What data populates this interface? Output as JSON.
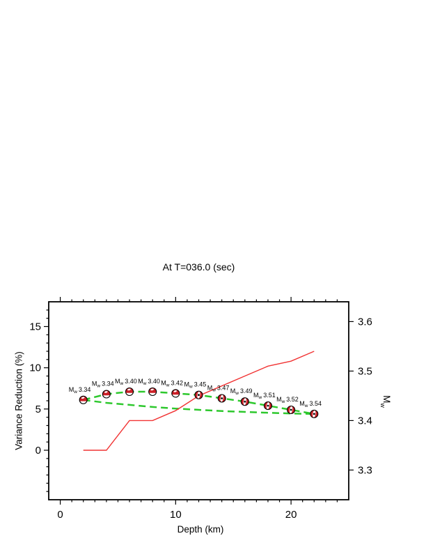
{
  "page": {
    "background": "#ffffff"
  },
  "chart_data": {
    "type": "line",
    "title": "At T=036.0 (sec)",
    "xlabel": "Depth (km)",
    "ylabel_left": "Variance Reduction (%)",
    "ylabel_right_main": "M",
    "ylabel_right_sub": "w",
    "x_range": [
      -1,
      25
    ],
    "vr_range": [
      -6,
      18
    ],
    "mw_range": [
      3.24,
      3.64
    ],
    "x_major_ticks": [
      0,
      10,
      20
    ],
    "x_minor_step": 1,
    "vr_major_ticks": [
      0,
      5,
      10,
      15
    ],
    "vr_minor_step": 1,
    "mw_major_ticks": [
      3.3,
      3.4,
      3.5,
      3.6
    ],
    "grid": false,
    "legend": "none",
    "depths": [
      2,
      4,
      6,
      8,
      10,
      12,
      14,
      16,
      18,
      20,
      22
    ],
    "series": [
      {
        "name": "moment-magnitude-line",
        "axis": "mw",
        "style": "solid",
        "values": [
          3.34,
          3.34,
          3.4,
          3.4,
          3.42,
          3.45,
          3.47,
          3.49,
          3.51,
          3.52,
          3.54
        ]
      },
      {
        "name": "variance-reduction-upper",
        "axis": "vr",
        "style": "dashed",
        "values": [
          6.1,
          6.8,
          7.1,
          7.1,
          6.9,
          6.7,
          6.3,
          5.9,
          5.4,
          4.9,
          4.4
        ]
      },
      {
        "name": "variance-reduction-lower",
        "axis": "vr",
        "style": "dashed",
        "values": [
          6.1,
          5.75,
          5.5,
          5.25,
          5.05,
          4.9,
          4.75,
          4.65,
          4.55,
          4.45,
          4.4
        ]
      }
    ],
    "beachballs": [
      {
        "depth": 2,
        "vr": 6.1,
        "label": "3.34",
        "type": "thrust"
      },
      {
        "depth": 4,
        "vr": 6.8,
        "label": "3.34",
        "type": "thrust"
      },
      {
        "depth": 6,
        "vr": 7.1,
        "label": "3.40",
        "type": "thrust"
      },
      {
        "depth": 8,
        "vr": 7.1,
        "label": "3.40",
        "type": "thrust"
      },
      {
        "depth": 10,
        "vr": 6.9,
        "label": "3.42",
        "type": "thrust"
      },
      {
        "depth": 12,
        "vr": 6.7,
        "label": "3.45",
        "type": "vertical"
      },
      {
        "depth": 14,
        "vr": 6.3,
        "label": "3.47",
        "type": "vertical"
      },
      {
        "depth": 16,
        "vr": 5.9,
        "label": "3.49",
        "type": "vertical"
      },
      {
        "depth": 18,
        "vr": 5.4,
        "label": "3.51",
        "type": "vertical"
      },
      {
        "depth": 20,
        "vr": 4.9,
        "label": "3.52",
        "type": "vertical"
      },
      {
        "depth": 22,
        "vr": 4.4,
        "label": "3.54",
        "type": "vertical"
      }
    ],
    "label_prefix_main": "M",
    "label_prefix_sub": "w",
    "colors": {
      "mw_line": "#f13333",
      "vr_line": "#2dc82d",
      "ball_fill": "#cc2027",
      "axis": "#000000"
    }
  }
}
